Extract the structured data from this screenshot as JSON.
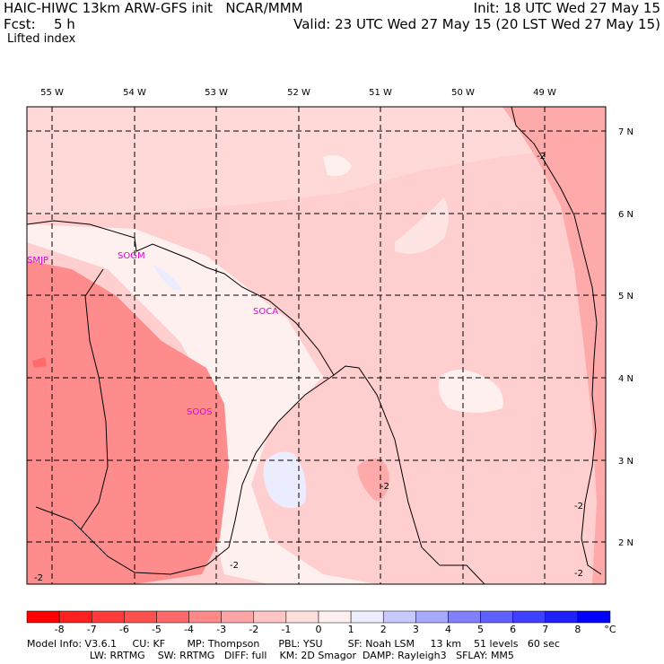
{
  "header": {
    "model_line": "HAIC-HIWC 13km ARW-GFS init   NCAR/MMM",
    "fcst_label": "Fcst:",
    "fcst_value": "5 h",
    "init_line": "Init: 18 UTC Wed 27 May 15",
    "valid_line": "Valid: 23 UTC Wed 27 May 15 (20 LST Wed 27 May 15)",
    "field_name": "Lifted index"
  },
  "map": {
    "longitude_labels": [
      "55 W",
      "54 W",
      "53 W",
      "52 W",
      "51 W",
      "50 W",
      "49 W"
    ],
    "latitude_labels": [
      "7 N",
      "6 N",
      "5 N",
      "4 N",
      "3 N",
      "2 N"
    ],
    "contour_labels": [
      "-2",
      "-2",
      "-2",
      "-2",
      "-2",
      "-2"
    ],
    "stations": [
      "SMJP",
      "SOGM",
      "SOCA",
      "SOOS"
    ]
  },
  "colorbar": {
    "levels": [
      "-8",
      "-7",
      "-6",
      "-5",
      "-4",
      "-3",
      "-2",
      "-1",
      "0",
      "1",
      "2",
      "3",
      "4",
      "5",
      "6",
      "7",
      "8"
    ],
    "unit": "°C",
    "colors": [
      "#ff0000",
      "#ff2020",
      "#ff3a3a",
      "#ff5050",
      "#ff6868",
      "#ff8888",
      "#ffa4a4",
      "#ffc4c4",
      "#ffdede",
      "#fff0f0",
      "#ececff",
      "#c8c8ff",
      "#a8a8ff",
      "#8080ff",
      "#6060ff",
      "#4040ff",
      "#2020ff",
      "#0000ff"
    ]
  },
  "footer": {
    "line1": "Model Info: V3.6.1     CU: KF       MP: Thompson      PBL: YSU        SF: Noah LSM     13 km    51 levels   60 sec",
    "line2": "                    LW: RRTMG    SW: RRTMG   DIFF: full    KM: 2D Smagor  DAMP: Rayleigh3   SFLAY: MM5"
  }
}
